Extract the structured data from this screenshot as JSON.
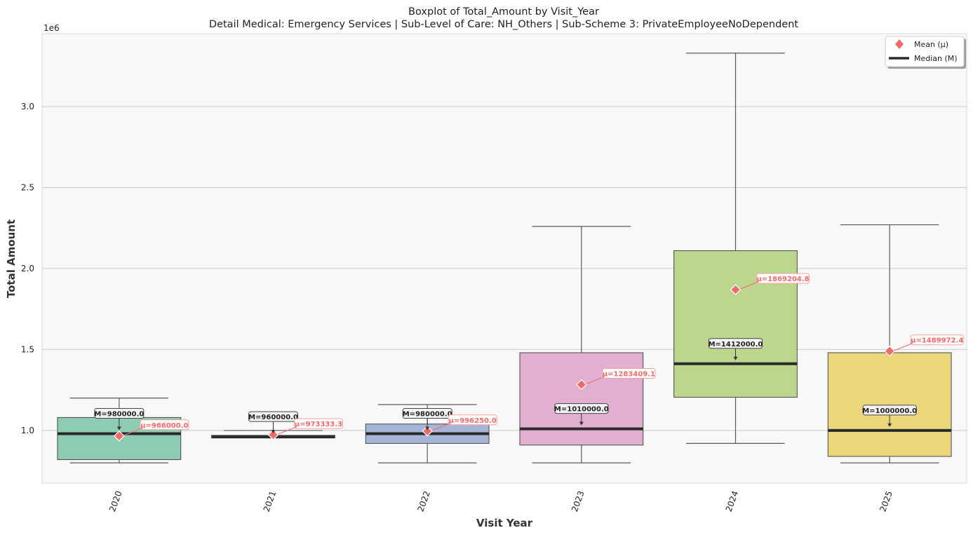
{
  "chart_data": {
    "type": "box",
    "title": "Boxplot of Total_Amount by Visit_Year",
    "subtitle": "Detail Medical: Emergency Services | Sub-Level of Care: NH_Others | Sub-Scheme 3: PrivateEmployeeNoDependent",
    "xlabel": "Visit Year",
    "ylabel": "Total Amount",
    "y_scale_label": "1e6",
    "ylim": [
      675000,
      3450000
    ],
    "y_ticks": [
      1000000,
      1500000,
      2000000,
      2500000,
      3000000
    ],
    "y_tick_labels": [
      "1.0",
      "1.5",
      "2.0",
      "2.5",
      "3.0"
    ],
    "grid": "horizontal",
    "legend_position": "top-right",
    "legend": {
      "mean_label": "Mean (μ)",
      "median_label": "Median (M)",
      "mean_color": "#f26b6b",
      "median_color": "#2b2b2b"
    },
    "categories": [
      "2020",
      "2021",
      "2022",
      "2023",
      "2024",
      "2025"
    ],
    "boxes": [
      {
        "x": "2020",
        "whisker_low": 800000,
        "q1": 820000,
        "median": 980000,
        "q3": 1080000,
        "whisker_high": 1200000,
        "mean": 966000,
        "median_label": "M=980000.0",
        "mean_label": "μ=966000.0",
        "color": "#8ecbb3"
      },
      {
        "x": "2021",
        "whisker_low": 955000,
        "q1": 955000,
        "median": 960000,
        "q3": 970000,
        "whisker_high": 1000000,
        "mean": 973333.3,
        "median_label": "M=960000.0",
        "mean_label": "μ=973333.3",
        "color": "#f2a98c"
      },
      {
        "x": "2022",
        "whisker_low": 800000,
        "q1": 920000,
        "median": 980000,
        "q3": 1040000,
        "whisker_high": 1160000,
        "mean": 996250,
        "median_label": "M=980000.0",
        "mean_label": "μ=996250.0",
        "color": "#a5b5d6"
      },
      {
        "x": "2023",
        "whisker_low": 800000,
        "q1": 910000,
        "median": 1010000,
        "q3": 1480000,
        "whisker_high": 2260000,
        "mean": 1283409.1,
        "median_label": "M=1010000.0",
        "mean_label": "μ=1283409.1",
        "color": "#e3afd1"
      },
      {
        "x": "2024",
        "whisker_low": 920000,
        "q1": 1205000,
        "median": 1412000,
        "q3": 2110000,
        "whisker_high": 3330000,
        "mean": 1869204.8,
        "median_label": "M=1412000.0",
        "mean_label": "μ=1869204.8",
        "color": "#bcd68e"
      },
      {
        "x": "2025",
        "whisker_low": 800000,
        "q1": 840000,
        "median": 1000000,
        "q3": 1480000,
        "whisker_high": 2270000,
        "mean": 1489972.4,
        "median_label": "M=1000000.0",
        "mean_label": "μ=1489972.4",
        "color": "#ead77c"
      }
    ]
  }
}
